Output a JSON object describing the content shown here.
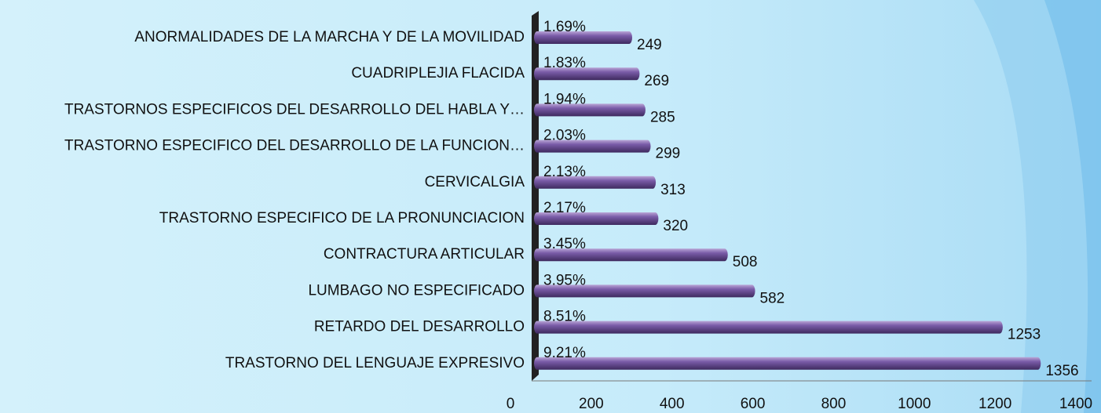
{
  "chart_data": {
    "type": "bar",
    "categories": [
      "ANORMALIDADES DE LA MARCHA Y DE LA MOVILIDAD",
      "CUADRIPLEJIA FLACIDA",
      "TRASTORNOS ESPECIFICOS DEL DESARROLLO DEL HABLA Y…",
      "TRASTORNO ESPECIFICO DEL DESARROLLO DE LA FUNCION…",
      "CERVICALGIA",
      "TRASTORNO ESPECIFICO DE LA PRONUNCIACION",
      "CONTRACTURA ARTICULAR",
      "LUMBAGO NO ESPECIFICADO",
      "RETARDO DEL DESARROLLO",
      "TRASTORNO DEL LENGUAJE EXPRESIVO"
    ],
    "values": [
      249,
      269,
      285,
      299,
      313,
      320,
      508,
      582,
      1253,
      1356
    ],
    "percent_labels": [
      "1.69%",
      "1.83%",
      "1.94%",
      "2.03%",
      "2.13%",
      "2.17%",
      "3.45%",
      "3.95%",
      "8.51%",
      "9.21%"
    ],
    "color": "#6b4f96",
    "xlim": [
      0,
      1400
    ],
    "xticks": [
      0,
      200,
      400,
      600,
      800,
      1000,
      1200,
      1400
    ]
  }
}
